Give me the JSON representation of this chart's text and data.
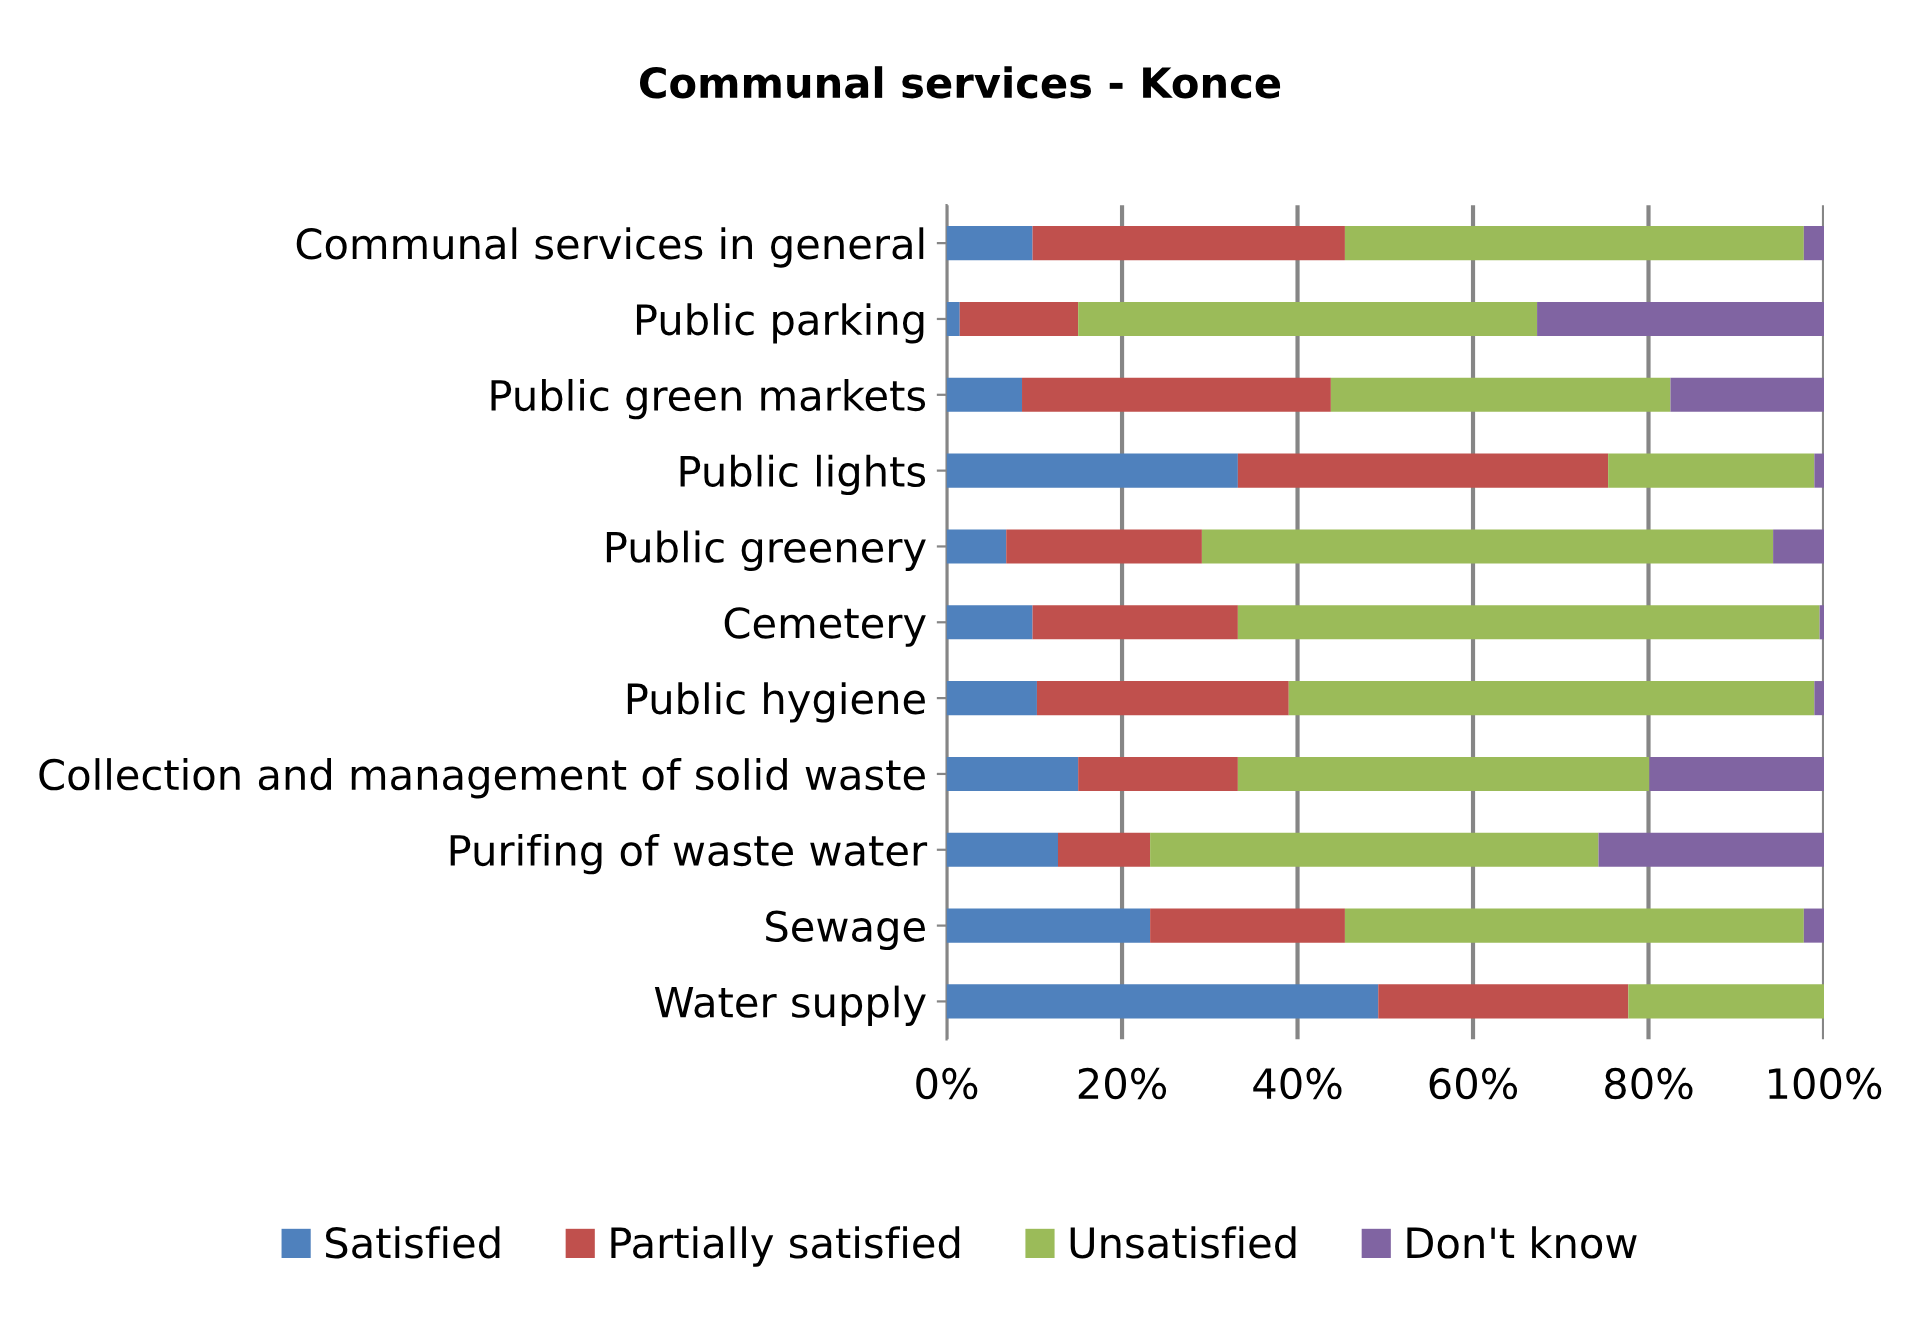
{
  "chart_data": {
    "type": "bar",
    "orientation": "horizontal",
    "stacked": true,
    "title": "Communal services - Konce",
    "categories": [
      "Communal services in general",
      "Public parking",
      "Public green markets",
      "Public lights",
      "Public greenery",
      "Cemetery",
      "Public hygiene",
      "Collection and management of solid waste",
      "Purifing of waste water",
      "Sewage",
      "Water supply"
    ],
    "series": [
      {
        "name": "Satisfied",
        "color": "#4f81bd",
        "values": [
          9.8,
          1.5,
          8.6,
          33.2,
          6.8,
          9.8,
          10.3,
          15.0,
          12.7,
          23.2,
          49.2
        ]
      },
      {
        "name": "Partially satisfied",
        "color": "#c0504d",
        "values": [
          35.6,
          13.5,
          35.2,
          42.2,
          22.3,
          23.4,
          28.7,
          18.2,
          10.5,
          22.2,
          28.5
        ]
      },
      {
        "name": "Unsatisfied",
        "color": "#9bbb59",
        "values": [
          52.3,
          52.3,
          38.7,
          23.5,
          65.1,
          66.3,
          59.9,
          46.9,
          51.1,
          52.3,
          22.3
        ]
      },
      {
        "name": "Don't know",
        "color": "#8064a2",
        "values": [
          2.3,
          32.7,
          17.5,
          1.1,
          5.8,
          0.5,
          1.1,
          19.9,
          25.7,
          2.3,
          0
        ]
      }
    ],
    "xlim": [
      0,
      100
    ],
    "xticks": [
      {
        "value": 0,
        "label": "0%"
      },
      {
        "value": 20,
        "label": "20%"
      },
      {
        "value": 40,
        "label": "40%"
      },
      {
        "value": 60,
        "label": "60%"
      },
      {
        "value": 80,
        "label": "80%"
      },
      {
        "value": 100,
        "label": "100%"
      }
    ],
    "grid": "x",
    "legend": "bottom"
  }
}
